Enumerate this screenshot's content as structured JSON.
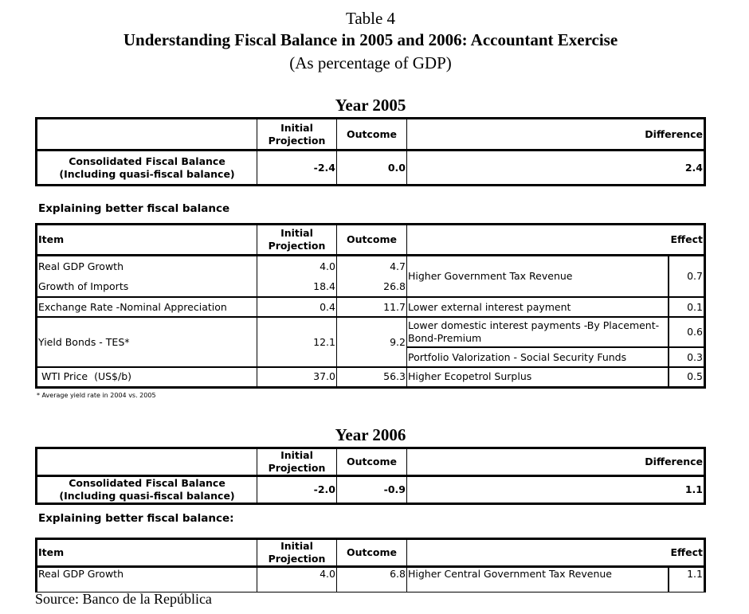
{
  "title": {
    "line1": "Table 4",
    "line2": "Understanding Fiscal Balance in 2005 and 2006:  Accountant Exercise",
    "line3": "(As percentage of GDP)"
  },
  "year2005": {
    "heading": "Year 2005",
    "summary": {
      "headers": [
        "",
        "Initial Projection",
        "Outcome",
        "Difference"
      ],
      "row": {
        "label1": "Consolidated Fiscal Balance",
        "label2": "(Including quasi-fiscal balance)",
        "initial": "-2.4",
        "outcome": "0.0",
        "difference": "2.4"
      }
    },
    "explain_label": "Explaining better fiscal balance",
    "detail": {
      "headers": {
        "item": "Item",
        "initial": "Initial Projection",
        "outcome": "Outcome",
        "effect": "Effect"
      },
      "rows": [
        {
          "item1": "Real GDP Growth",
          "item2": "Growth of Imports",
          "init1": "4.0",
          "init2": "18.4",
          "out1": "4.7",
          "out2": "26.8",
          "desc": "Higher Government Tax Revenue",
          "effect": "0.7"
        },
        {
          "item": "Exchange Rate -Nominal Appreciation",
          "init": "0.4",
          "out": "11.7",
          "desc": "Lower external interest payment",
          "effect": "0.1"
        },
        {
          "item": "Yield Bonds - TES*",
          "init": "12.1",
          "out": "9.2",
          "desc": "Lower domestic interest payments -By Placement-Bond-Premium",
          "effect": "0.6",
          "desc2": "Portfolio Valorization - Social Security Funds",
          "effect2": "0.3"
        },
        {
          "item": " WTI Price  (US$/b)",
          "init": "37.0",
          "out": "56.3",
          "desc": "Higher Ecopetrol Surplus",
          "effect": "0.5"
        }
      ]
    },
    "footnote": "* Average yield rate in 2004 vs. 2005"
  },
  "year2006": {
    "heading": "Year 2006",
    "summary": {
      "headers": [
        "",
        "Initial Projection",
        "Outcome",
        "Difference"
      ],
      "row": {
        "label1": "Consolidated Fiscal Balance",
        "label2": "(Including quasi-fiscal balance)",
        "initial": "-2.0",
        "outcome": "-0.9",
        "difference": "1.1"
      }
    },
    "explain_label": "Explaining better fiscal balance:",
    "detail": {
      "headers": {
        "item": "Item",
        "initial": "Initial Projection",
        "outcome": "Outcome",
        "effect": "Effect"
      },
      "rows": [
        {
          "item": "Real GDP Growth",
          "init": "4.0",
          "out": "6.8",
          "desc": "Higher Central Government Tax Revenue",
          "effect": "1.1"
        }
      ]
    }
  },
  "source": "Source: Banco de la República"
}
